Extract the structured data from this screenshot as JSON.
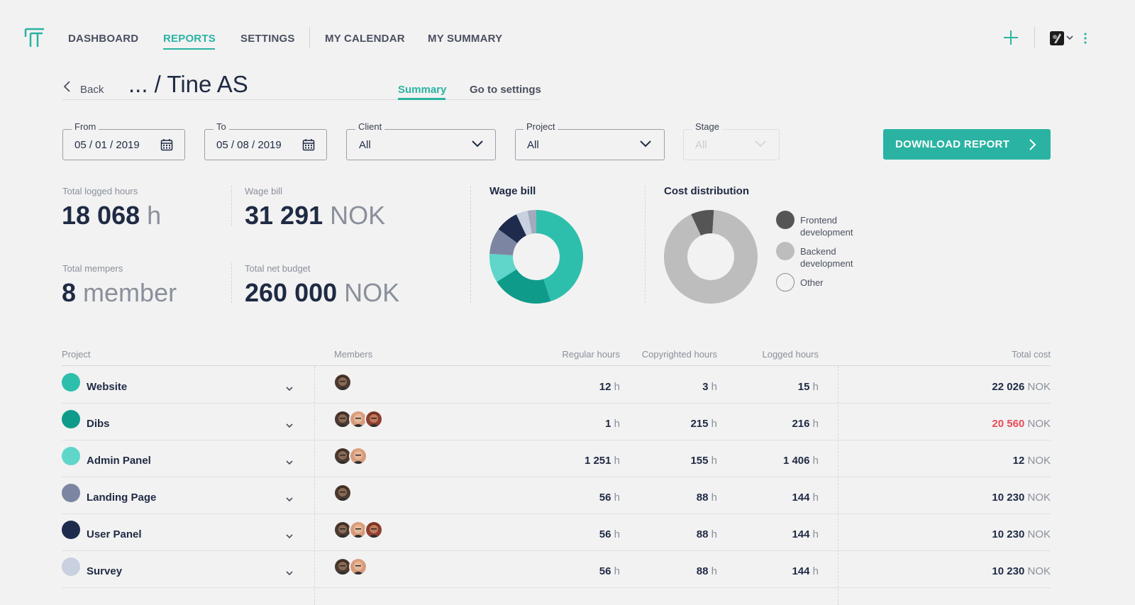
{
  "nav": {
    "items": [
      "DASHBOARD",
      "REPORTS",
      "SETTINGS",
      "MY CALENDAR",
      "MY SUMMARY"
    ],
    "active": "REPORTS"
  },
  "header": {
    "back_label": "Back",
    "title": "... / Tine AS",
    "tabs": [
      "Summary",
      "Go to settings"
    ],
    "active_tab": "Summary"
  },
  "filters": {
    "from": {
      "label": "From",
      "value": "05 / 01 / 2019"
    },
    "to": {
      "label": "To",
      "value": "05 / 08 / 2019"
    },
    "client": {
      "label": "Client",
      "value": "All"
    },
    "project": {
      "label": "Project",
      "value": "All"
    },
    "stage": {
      "label": "Stage",
      "value": "All",
      "disabled": true
    },
    "download_label": "DOWNLOAD REPORT"
  },
  "stats": {
    "total_logged_hours": {
      "label": "Total logged hours",
      "value": "18 068",
      "unit": "h"
    },
    "wage_bill": {
      "label": "Wage bill",
      "value": "31 291",
      "unit": "NOK"
    },
    "total_members": {
      "label": "Total mempers",
      "value": "8",
      "unit": "member"
    },
    "total_net_budget": {
      "label": "Total net budget",
      "value": "260 000",
      "unit": "NOK"
    }
  },
  "chart_data": [
    {
      "type": "pie",
      "title": "Wage bill",
      "categories": [
        "",
        "",
        "",
        "",
        "",
        "",
        ""
      ],
      "values": [
        45,
        21,
        10,
        9,
        8,
        4,
        3
      ],
      "colors": [
        "#2ebfac",
        "#0f9b8a",
        "#5fd6c9",
        "#7c86a3",
        "#1e2b4c",
        "#c9d0df",
        "#a3aabc"
      ]
    },
    {
      "type": "pie",
      "title": "Cost distribution",
      "categories": [
        "Frontend development",
        "Backend development",
        "Other"
      ],
      "values": [
        8,
        92,
        0
      ],
      "colors": [
        "#555555",
        "#bdbdbd",
        "#ffffff"
      ]
    }
  ],
  "table": {
    "headers": {
      "project": "Project",
      "members": "Members",
      "regular": "Regular hours",
      "copyrighted": "Copyrighted hours",
      "logged": "Logged hours",
      "total": "Total cost"
    },
    "hour_unit": "h",
    "cost_unit": "NOK",
    "rows": [
      {
        "name": "Website",
        "color": "#2ebfac",
        "members": 1,
        "regular": "12",
        "copyrighted": "3",
        "logged": "15",
        "total": "22 026",
        "total_over_budget": false
      },
      {
        "name": "Dibs",
        "color": "#0f9b8a",
        "members": 3,
        "regular": "1",
        "copyrighted": "215",
        "logged": "216",
        "total": "20 560",
        "total_over_budget": true
      },
      {
        "name": "Admin Panel",
        "color": "#5fd6c9",
        "members": 2,
        "regular": "1 251",
        "copyrighted": "155",
        "logged": "1 406",
        "total": "12",
        "total_over_budget": false
      },
      {
        "name": "Landing Page",
        "color": "#7c86a3",
        "members": 1,
        "regular": "56",
        "copyrighted": "88",
        "logged": "144",
        "total": "10 230",
        "total_over_budget": false
      },
      {
        "name": "User Panel",
        "color": "#1e2b4c",
        "members": 3,
        "regular": "56",
        "copyrighted": "88",
        "logged": "144",
        "total": "10 230",
        "total_over_budget": false
      },
      {
        "name": "Survey",
        "color": "#c9d0df",
        "members": 2,
        "regular": "56",
        "copyrighted": "88",
        "logged": "144",
        "total": "10 230",
        "total_over_budget": false
      }
    ]
  },
  "icons": {
    "logo": "logo-icon",
    "add": "plus-icon",
    "menu": "kebab-icon",
    "back": "chevron-left-icon",
    "calendar": "calendar-icon",
    "select": "chevron-down-icon",
    "download": "chevron-right-icon",
    "row_expand": "chevron-down-icon"
  },
  "colors": {
    "accent": "#2ab3a2",
    "over_budget": "#e94b5a",
    "text": "#1f2a44"
  }
}
